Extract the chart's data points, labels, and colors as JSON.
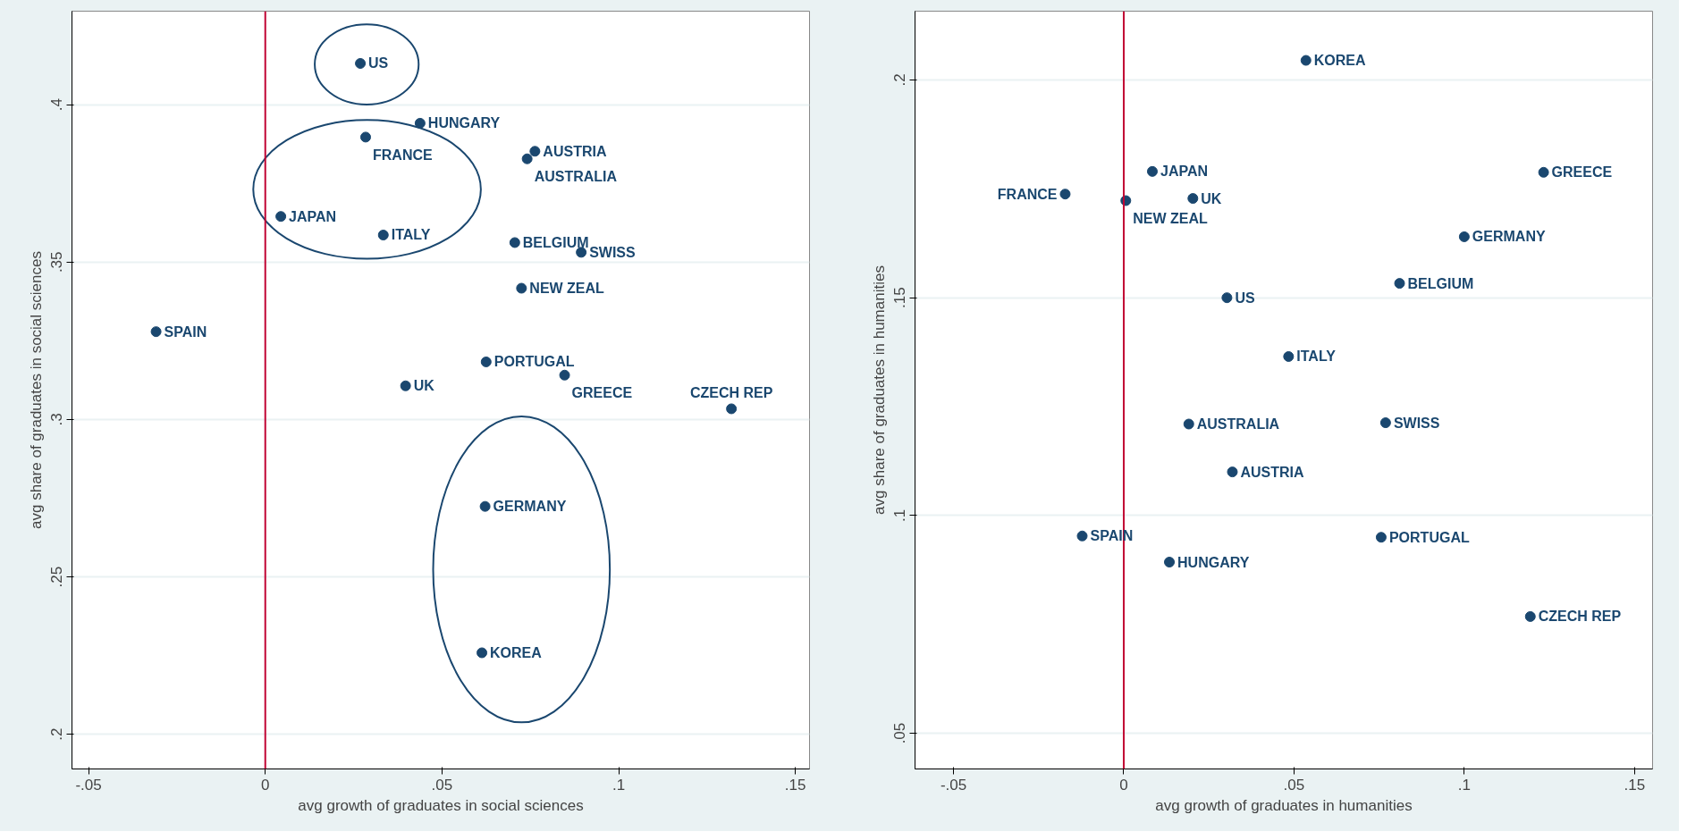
{
  "chart_data": [
    {
      "type": "scatter",
      "xlabel": "avg growth of graduates in social sciences",
      "ylabel": "avg share of graduates in social sciences",
      "xlim": [
        -0.0547,
        0.154
      ],
      "ylim": [
        0.189,
        0.4297
      ],
      "xticks": [
        {
          "value": -0.05,
          "label": "-.05"
        },
        0,
        {
          "value": 0.05,
          "label": ".05"
        },
        {
          "value": 0.1,
          "label": ".1"
        },
        {
          "value": 0.15,
          "label": ".15"
        }
      ],
      "yticks": [
        {
          "value": 0.2,
          "label": ".2"
        },
        {
          "value": 0.25,
          "label": ".25"
        },
        {
          "value": 0.3,
          "label": ".3"
        },
        {
          "value": 0.35,
          "label": ".35"
        },
        {
          "value": 0.4,
          "label": ".4"
        }
      ],
      "grid": "y",
      "marker": "circle",
      "ref_lines": [
        {
          "axis": "x",
          "value": 0,
          "color": "#c10534"
        }
      ],
      "series": [
        {
          "color": "#1a476f",
          "x": [
            0.0269,
            0.0438,
            0.0284,
            0.0763,
            0.0741,
            0.0044,
            0.0334,
            0.0706,
            0.0894,
            0.0725,
            -0.0309,
            0.0625,
            0.0397,
            0.0847,
            0.1319,
            0.0622,
            0.0613
          ],
          "values": [
            0.4131,
            0.3941,
            0.3897,
            0.3852,
            0.3828,
            0.3645,
            0.3586,
            0.3562,
            0.3531,
            0.3417,
            0.3279,
            0.3183,
            0.3107,
            0.3141,
            0.3034,
            0.2724,
            0.2259
          ]
        }
      ],
      "annotations": [
        {
          "text": "US",
          "x": 0.0269,
          "y": 0.4131
        },
        {
          "text": "HUNGARY",
          "x": 0.0438,
          "y": 0.3941
        },
        {
          "text": "FRANCE",
          "x": 0.0284,
          "y": 0.3897
        },
        {
          "text": "AUSTRIA",
          "x": 0.0763,
          "y": 0.3852
        },
        {
          "text": "AUSTRALIA",
          "x": 0.0741,
          "y": 0.3828
        },
        {
          "text": "JAPAN",
          "x": 0.0044,
          "y": 0.3645
        },
        {
          "text": "ITALY",
          "x": 0.0334,
          "y": 0.3586
        },
        {
          "text": "BELGIUM",
          "x": 0.0706,
          "y": 0.3562
        },
        {
          "text": "SWISS",
          "x": 0.0894,
          "y": 0.3531
        },
        {
          "text": "NEW ZEAL",
          "x": 0.0725,
          "y": 0.3417
        },
        {
          "text": "SPAIN",
          "x": -0.0309,
          "y": 0.3279
        },
        {
          "text": "PORTUGAL",
          "x": 0.0625,
          "y": 0.3183
        },
        {
          "text": "UK",
          "x": 0.0397,
          "y": 0.3107
        },
        {
          "text": "GREECE",
          "x": 0.0847,
          "y": 0.3141
        },
        {
          "text": "CZECH REP",
          "x": 0.1319,
          "y": 0.3034
        },
        {
          "text": "GERMANY",
          "x": 0.0622,
          "y": 0.2724
        },
        {
          "text": "KOREA",
          "x": 0.0613,
          "y": 0.2259
        }
      ]
    },
    {
      "type": "scatter",
      "xlabel": "avg growth of graduates in humanities",
      "ylabel": "avg share of graduates in humanities",
      "xlim": [
        -0.0613,
        0.1553
      ],
      "ylim": [
        0.0418,
        0.2158
      ],
      "xticks": [
        {
          "value": -0.05,
          "label": "-.05"
        },
        0,
        {
          "value": 0.05,
          "label": ".05"
        },
        {
          "value": 0.1,
          "label": ".1"
        },
        {
          "value": 0.15,
          "label": ".15"
        }
      ],
      "yticks": [
        {
          "value": 0.05,
          "label": ".05"
        },
        {
          "value": 0.1,
          "label": ".1"
        },
        {
          "value": 0.15,
          "label": ".15"
        },
        {
          "value": 0.2,
          "label": ".2"
        }
      ],
      "grid": "y",
      "marker": "circle",
      "ref_lines": [
        {
          "axis": "x",
          "value": 0,
          "color": "#c10534"
        }
      ],
      "series": [
        {
          "color": "#1a476f",
          "x": [
            0.0535,
            0.0084,
            0.1233,
            -0.0172,
            0.0006,
            0.0203,
            0.1,
            0.081,
            0.0303,
            0.0484,
            0.0191,
            0.0769,
            0.0319,
            -0.0122,
            0.0756,
            0.0134,
            0.1194
          ],
          "values": [
            0.2045,
            0.179,
            0.1788,
            0.1738,
            0.1723,
            0.1728,
            0.164,
            0.1533,
            0.15,
            0.1365,
            0.121,
            0.1213,
            0.11,
            0.0953,
            0.095,
            0.0893,
            0.0768
          ]
        }
      ],
      "annotations": [
        {
          "text": "KOREA",
          "x": 0.0535,
          "y": 0.2045
        },
        {
          "text": "JAPAN",
          "x": 0.0084,
          "y": 0.179
        },
        {
          "text": "GREECE",
          "x": 0.1233,
          "y": 0.1788
        },
        {
          "text": "FRANCE",
          "x": -0.0172,
          "y": 0.1738
        },
        {
          "text": "NEW ZEAL",
          "x": 0.0006,
          "y": 0.1723
        },
        {
          "text": "UK",
          "x": 0.0203,
          "y": 0.1728
        },
        {
          "text": "GERMANY",
          "x": 0.1,
          "y": 0.164
        },
        {
          "text": "BELGIUM",
          "x": 0.081,
          "y": 0.1533
        },
        {
          "text": "US",
          "x": 0.0303,
          "y": 0.15
        },
        {
          "text": "ITALY",
          "x": 0.0484,
          "y": 0.1365
        },
        {
          "text": "AUSTRALIA",
          "x": 0.0191,
          "y": 0.121
        },
        {
          "text": "SWISS",
          "x": 0.0769,
          "y": 0.1213
        },
        {
          "text": "AUSTRIA",
          "x": 0.0319,
          "y": 0.11
        },
        {
          "text": "SPAIN",
          "x": -0.0122,
          "y": 0.0953
        },
        {
          "text": "PORTUGAL",
          "x": 0.0756,
          "y": 0.095
        },
        {
          "text": "HUNGARY",
          "x": 0.0134,
          "y": 0.0893
        },
        {
          "text": "CZECH REP",
          "x": 0.1194,
          "y": 0.0768
        }
      ]
    }
  ]
}
